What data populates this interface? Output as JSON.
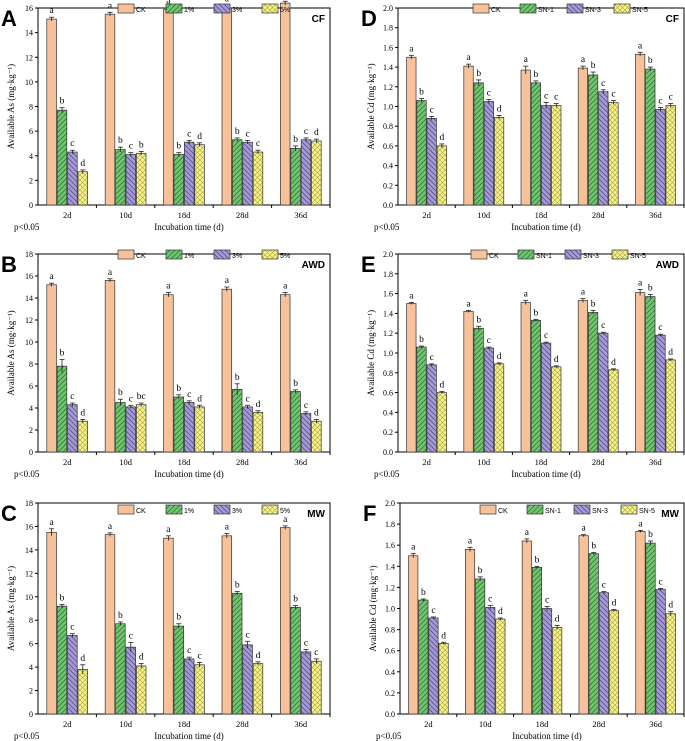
{
  "legend_colors": [
    "#f7c29a",
    "#72c472",
    "#a59bd3",
    "#f7f28d"
  ],
  "legend_patterns": [
    "solid",
    "diag-up",
    "diag-down",
    "cross"
  ],
  "chart_data": [
    {
      "panel": "A",
      "condition": "CF",
      "type": "bar",
      "ylabel": "Available As (mg·kg⁻¹)",
      "xlabel": "Incubation time (d)",
      "ylim": [
        0,
        16
      ],
      "yticks": [
        "0",
        "2",
        "4",
        "6",
        "8",
        "10",
        "12",
        "14",
        "16"
      ],
      "categories": [
        "2d",
        "10d",
        "18d",
        "28d",
        "36d"
      ],
      "note": "p<0.05",
      "series": [
        {
          "name": "CK",
          "values": [
            15.1,
            15.5,
            15.9,
            16.0,
            16.4
          ],
          "errors": [
            0.15,
            0.15,
            0.15,
            0.2,
            0.15
          ],
          "letters": [
            "a",
            "a",
            "a",
            "a",
            "a"
          ]
        },
        {
          "name": "1%",
          "values": [
            7.7,
            4.5,
            4.1,
            5.3,
            4.6
          ],
          "errors": [
            0.2,
            0.2,
            0.15,
            0.15,
            0.2
          ],
          "letters": [
            "b",
            "b",
            "b",
            "b",
            "b"
          ]
        },
        {
          "name": "3%",
          "values": [
            4.3,
            4.1,
            5.1,
            5.1,
            5.3
          ],
          "errors": [
            0.15,
            0.15,
            0.15,
            0.15,
            0.15
          ],
          "letters": [
            "c",
            "c",
            "c",
            "c",
            "c"
          ]
        },
        {
          "name": "5%",
          "values": [
            2.7,
            4.2,
            4.9,
            4.3,
            5.2
          ],
          "errors": [
            0.15,
            0.15,
            0.15,
            0.15,
            0.15
          ],
          "letters": [
            "d",
            "b",
            "d",
            "c",
            "d"
          ]
        }
      ]
    },
    {
      "panel": "D",
      "condition": "CF",
      "type": "bar",
      "ylabel": "Available Cd (mg·kg⁻¹)",
      "xlabel": "Incubation time (d)",
      "ylim": [
        0,
        2.0
      ],
      "yticks": [
        "0.0",
        "0.2",
        "0.4",
        "0.6",
        "0.8",
        "1.0",
        "1.2",
        "1.4",
        "1.6",
        "1.8",
        "2.0"
      ],
      "categories": [
        "2d",
        "10d",
        "18d",
        "28d",
        "36d"
      ],
      "note": "p<0.05",
      "series": [
        {
          "name": "CK",
          "values": [
            1.5,
            1.41,
            1.37,
            1.39,
            1.53
          ],
          "errors": [
            0.02,
            0.02,
            0.04,
            0.02,
            0.02
          ],
          "letters": [
            "a",
            "a",
            "a",
            "a",
            "a"
          ]
        },
        {
          "name": "SN-1",
          "values": [
            1.06,
            1.24,
            1.24,
            1.32,
            1.38
          ],
          "errors": [
            0.02,
            0.03,
            0.02,
            0.03,
            0.02
          ],
          "letters": [
            "b",
            "b",
            "b",
            "b",
            "b"
          ]
        },
        {
          "name": "SN-3",
          "values": [
            0.88,
            1.05,
            1.01,
            1.15,
            0.97
          ],
          "errors": [
            0.02,
            0.02,
            0.03,
            0.02,
            0.02
          ],
          "letters": [
            "c",
            "c",
            "c",
            "c",
            "c"
          ]
        },
        {
          "name": "SN-5",
          "values": [
            0.6,
            0.89,
            1.01,
            1.04,
            1.01
          ],
          "errors": [
            0.02,
            0.02,
            0.02,
            0.02,
            0.02
          ],
          "letters": [
            "d",
            "d",
            "c",
            "c",
            "c"
          ]
        }
      ]
    },
    {
      "panel": "B",
      "condition": "AWD",
      "type": "bar",
      "ylabel": "Available As (mg·kg⁻¹)",
      "xlabel": "Incubation time (d)",
      "ylim": [
        0,
        18
      ],
      "yticks": [
        "0",
        "2",
        "4",
        "6",
        "8",
        "10",
        "12",
        "14",
        "16",
        "18"
      ],
      "categories": [
        "2d",
        "10d",
        "18d",
        "28d",
        "36d"
      ],
      "note": "p<0.05",
      "series": [
        {
          "name": "CK",
          "values": [
            15.2,
            15.6,
            14.3,
            14.8,
            14.3
          ],
          "errors": [
            0.15,
            0.15,
            0.2,
            0.2,
            0.2
          ],
          "letters": [
            "a",
            "a",
            "a",
            "a",
            "a"
          ]
        },
        {
          "name": "1%",
          "values": [
            7.8,
            4.5,
            5.0,
            5.7,
            5.5
          ],
          "errors": [
            0.6,
            0.3,
            0.2,
            0.5,
            0.15
          ],
          "letters": [
            "b",
            "b",
            "b",
            "b",
            "b"
          ]
        },
        {
          "name": "3%",
          "values": [
            4.3,
            4.1,
            4.5,
            4.1,
            3.5
          ],
          "errors": [
            0.15,
            0.15,
            0.15,
            0.15,
            0.15
          ],
          "letters": [
            "c",
            "c",
            "c",
            "c",
            "c"
          ]
        },
        {
          "name": "5%",
          "values": [
            2.8,
            4.3,
            4.1,
            3.6,
            2.8
          ],
          "errors": [
            0.15,
            0.15,
            0.15,
            0.15,
            0.15
          ],
          "letters": [
            "d",
            "bc",
            "d",
            "d",
            "d"
          ]
        }
      ]
    },
    {
      "panel": "E",
      "condition": "AWD",
      "type": "bar",
      "ylabel": "Available Cd (mg·kg⁻¹)",
      "xlabel": "Incubation time (d)",
      "ylim": [
        0,
        2.0
      ],
      "yticks": [
        "0.0",
        "0.2",
        "0.4",
        "0.6",
        "0.8",
        "1.0",
        "1.2",
        "1.4",
        "1.6",
        "1.8",
        "2.0"
      ],
      "categories": [
        "2d",
        "10d",
        "18d",
        "28d",
        "36d"
      ],
      "note": "p<0.05",
      "series": [
        {
          "name": "CK",
          "values": [
            1.5,
            1.42,
            1.51,
            1.53,
            1.61
          ],
          "errors": [
            0.01,
            0.01,
            0.02,
            0.02,
            0.03
          ],
          "letters": [
            "a",
            "a",
            "a",
            "a",
            "a"
          ]
        },
        {
          "name": "SN-1",
          "values": [
            1.06,
            1.25,
            1.33,
            1.41,
            1.57
          ],
          "errors": [
            0.01,
            0.02,
            0.01,
            0.02,
            0.02
          ],
          "letters": [
            "b",
            "b",
            "b",
            "b",
            "b"
          ]
        },
        {
          "name": "SN-3",
          "values": [
            0.88,
            1.05,
            1.1,
            1.2,
            1.18
          ],
          "errors": [
            0.01,
            0.01,
            0.01,
            0.01,
            0.01
          ],
          "letters": [
            "c",
            "c",
            "c",
            "c",
            "c"
          ]
        },
        {
          "name": "SN-5",
          "values": [
            0.6,
            0.89,
            0.86,
            0.83,
            0.93
          ],
          "errors": [
            0.01,
            0.01,
            0.01,
            0.01,
            0.01
          ],
          "letters": [
            "d",
            "d",
            "d",
            "d",
            "d"
          ]
        }
      ]
    },
    {
      "panel": "C",
      "condition": "MW",
      "type": "bar",
      "ylabel": "Available As (mg·kg⁻¹)",
      "xlabel": "Incubation time (d)",
      "ylim": [
        0,
        18
      ],
      "yticks": [
        "0",
        "2",
        "4",
        "6",
        "8",
        "10",
        "12",
        "14",
        "16",
        "18"
      ],
      "categories": [
        "2d",
        "10d",
        "18d",
        "28d",
        "36d"
      ],
      "note": "p<0.05",
      "series": [
        {
          "name": "CK",
          "values": [
            15.5,
            15.3,
            15.0,
            15.2,
            15.9
          ],
          "errors": [
            0.3,
            0.15,
            0.2,
            0.2,
            0.15
          ],
          "letters": [
            "a",
            "a",
            "a",
            "a",
            "a"
          ]
        },
        {
          "name": "1%",
          "values": [
            9.2,
            7.7,
            7.5,
            10.3,
            9.1
          ],
          "errors": [
            0.15,
            0.15,
            0.2,
            0.15,
            0.15
          ],
          "letters": [
            "b",
            "b",
            "b",
            "b",
            "b"
          ]
        },
        {
          "name": "3%",
          "values": [
            6.7,
            5.7,
            4.7,
            5.9,
            5.3
          ],
          "errors": [
            0.15,
            0.4,
            0.15,
            0.3,
            0.2
          ],
          "letters": [
            "c",
            "c",
            "c",
            "c",
            "c"
          ]
        },
        {
          "name": "5%",
          "values": [
            3.8,
            4.1,
            4.2,
            4.3,
            4.5
          ],
          "errors": [
            0.4,
            0.2,
            0.2,
            0.15,
            0.2
          ],
          "letters": [
            "d",
            "d",
            "c",
            "d",
            "c"
          ]
        }
      ]
    },
    {
      "panel": "F",
      "condition": "MW",
      "type": "bar",
      "ylabel": "Available Cd (mg·kg⁻¹)",
      "xlabel": "Incubation time (d)",
      "ylim": [
        0,
        2.0
      ],
      "yticks": [
        "0.0",
        "0.2",
        "0.4",
        "0.6",
        "0.8",
        "1.0",
        "1.2",
        "1.4",
        "1.6",
        "1.8",
        "2.0"
      ],
      "categories": [
        "2d",
        "10d",
        "18d",
        "28d",
        "36d"
      ],
      "note": "p<0.05",
      "series": [
        {
          "name": "CK",
          "values": [
            1.5,
            1.56,
            1.64,
            1.69,
            1.73
          ],
          "errors": [
            0.02,
            0.02,
            0.02,
            0.01,
            0.01
          ],
          "letters": [
            "a",
            "a",
            "a",
            "a",
            "a"
          ]
        },
        {
          "name": "SN-1",
          "values": [
            1.08,
            1.28,
            1.39,
            1.52,
            1.62
          ],
          "errors": [
            0.01,
            0.02,
            0.01,
            0.01,
            0.02
          ],
          "letters": [
            "b",
            "b",
            "b",
            "b",
            "b"
          ]
        },
        {
          "name": "SN-3",
          "values": [
            0.91,
            1.01,
            1.0,
            1.15,
            1.18
          ],
          "errors": [
            0.01,
            0.02,
            0.02,
            0.01,
            0.01
          ],
          "letters": [
            "c",
            "c",
            "c",
            "c",
            "c"
          ]
        },
        {
          "name": "SN-5",
          "values": [
            0.67,
            0.9,
            0.82,
            0.98,
            0.95
          ],
          "errors": [
            0.01,
            0.01,
            0.02,
            0.01,
            0.02
          ],
          "letters": [
            "d",
            "d",
            "d",
            "d",
            "d"
          ]
        }
      ]
    }
  ]
}
